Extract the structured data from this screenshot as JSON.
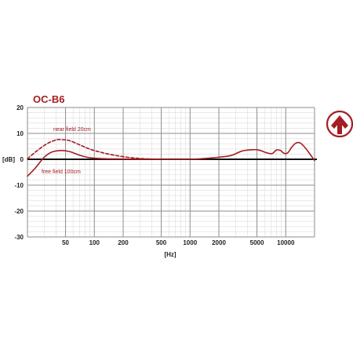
{
  "brand": {
    "accent_color": "#a41e22",
    "logo_icon": "austrian-audio-logo-icon"
  },
  "chart_data": {
    "type": "line",
    "title": "OC-B6",
    "xlabel": "[Hz]",
    "ylabel": "[dB]",
    "x_scale": "log",
    "xlim": [
      20,
      20000
    ],
    "ylim": [
      -30,
      20
    ],
    "x_ticks": [
      50,
      100,
      200,
      500,
      1000,
      2000,
      5000,
      10000
    ],
    "x_tick_labels": [
      "50",
      "100",
      "200",
      "500",
      "1000",
      "2000",
      "5000",
      "10000"
    ],
    "y_ticks": [
      20,
      10,
      0,
      -10,
      -20,
      -30
    ],
    "y_tick_labels": [
      "20",
      "10",
      "0",
      "-10",
      "-20",
      "-30"
    ],
    "grid": true,
    "series": [
      {
        "name": "near field 20cm",
        "style": "dashed",
        "color": "#a41e22",
        "points": [
          [
            20,
            0.2
          ],
          [
            25,
            3.2
          ],
          [
            32,
            6.0
          ],
          [
            40,
            7.5
          ],
          [
            45,
            7.6
          ],
          [
            55,
            7.2
          ],
          [
            70,
            5.6
          ],
          [
            90,
            3.9
          ],
          [
            120,
            2.6
          ],
          [
            160,
            1.6
          ],
          [
            220,
            0.8
          ],
          [
            300,
            0.3
          ],
          [
            400,
            0.1
          ],
          [
            500,
            0
          ]
        ]
      },
      {
        "name": "free field 100cm",
        "style": "solid",
        "color": "#a41e22",
        "points": [
          [
            20,
            -6.5
          ],
          [
            24,
            -3.5
          ],
          [
            30,
            0.8
          ],
          [
            36,
            2.8
          ],
          [
            45,
            3.4
          ],
          [
            55,
            3.0
          ],
          [
            70,
            1.6
          ],
          [
            90,
            0.6
          ],
          [
            130,
            0.2
          ],
          [
            200,
            0.1
          ],
          [
            300,
            0
          ],
          [
            500,
            0
          ],
          [
            1000,
            0
          ],
          [
            1400,
            0.3
          ],
          [
            2000,
            0.8
          ],
          [
            2700,
            1.5
          ],
          [
            3500,
            3.2
          ],
          [
            4500,
            3.7
          ],
          [
            5300,
            3.5
          ],
          [
            6200,
            2.6
          ],
          [
            7200,
            2.2
          ],
          [
            8000,
            3.6
          ],
          [
            8800,
            3.4
          ],
          [
            9600,
            2.3
          ],
          [
            10500,
            2.5
          ],
          [
            11500,
            4.6
          ],
          [
            12700,
            6.2
          ],
          [
            14000,
            6.4
          ],
          [
            15500,
            5.0
          ],
          [
            17500,
            2.5
          ],
          [
            20000,
            -0.5
          ]
        ]
      }
    ],
    "annotations": [
      {
        "text": "near field 20cm",
        "series": "near field 20cm"
      },
      {
        "text": "free field 100cm",
        "series": "free field 100cm"
      }
    ]
  }
}
